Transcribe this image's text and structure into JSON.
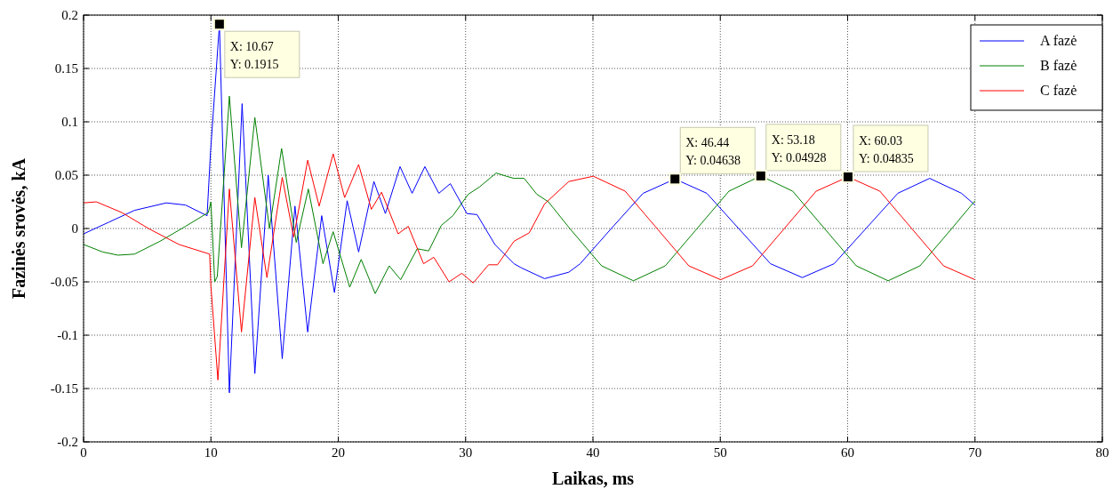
{
  "chart_data": {
    "type": "line",
    "xlabel": "Laikas, ms",
    "ylabel": "Fazinės srovės, kA",
    "xlim": [
      0,
      80
    ],
    "xticks": [
      0,
      10,
      20,
      30,
      40,
      50,
      60,
      70,
      80
    ],
    "ylim": [
      -0.2,
      0.2
    ],
    "yticks": [
      -0.2,
      -0.15,
      -0.1,
      -0.05,
      0,
      0.05,
      0.1,
      0.15,
      0.2
    ],
    "grid": true,
    "legend": "top right",
    "line_style": "solid",
    "marker": "none",
    "series": [
      {
        "name": "A fazė",
        "color": "#0000ff",
        "x": [
          0,
          2,
          4,
          6.5,
          8,
          9.7,
          9.96,
          10.67,
          11.45,
          12.45,
          13.45,
          14.5,
          15.6,
          16.6,
          17.6,
          18.7,
          19.7,
          20.7,
          21.6,
          22.8,
          23.7,
          24.85,
          25.8,
          26.8,
          27.9,
          28.8,
          30.1,
          30.9,
          32.3,
          33.8,
          34.4,
          36.2,
          38.1,
          39,
          41.44,
          43.94,
          46.44,
          48.94,
          51.44,
          53.94,
          56.44,
          58.94,
          61.44,
          63.94,
          66.44,
          68.94,
          70
        ],
        "values": [
          -0.005,
          0.006,
          0.017,
          0.024,
          0.022,
          0.012,
          0.07,
          0.1915,
          -0.154,
          0.117,
          -0.136,
          0.05,
          -0.122,
          0.021,
          -0.097,
          0.012,
          -0.06,
          0.026,
          -0.022,
          0.044,
          0.014,
          0.058,
          0.033,
          0.058,
          0.033,
          0.042,
          0.014,
          0.013,
          -0.015,
          -0.033,
          -0.037,
          -0.047,
          -0.041,
          -0.033,
          0,
          0.033,
          0.04638,
          0.033,
          0,
          -0.033,
          -0.046,
          -0.033,
          0,
          0.033,
          0.047,
          0.033,
          0.022
        ]
      },
      {
        "name": "B fazė",
        "color": "#008000",
        "x": [
          0,
          1.5,
          2.7,
          4,
          6,
          8,
          9.8,
          10,
          10.3,
          10.5,
          11.45,
          12.4,
          13.45,
          14.6,
          15.55,
          16.7,
          17.65,
          18.8,
          19.6,
          20.9,
          21.8,
          22.9,
          24,
          24.9,
          26.2,
          27.1,
          28.1,
          29,
          30.2,
          31.1,
          32.4,
          33.2,
          33.8,
          34.6,
          35.6,
          36.5,
          38.18,
          40.68,
          43.18,
          45.68,
          48.18,
          50.68,
          53.18,
          55.68,
          58.18,
          60.68,
          63.18,
          65.68,
          68.18,
          70
        ],
        "values": [
          -0.015,
          -0.022,
          -0.025,
          -0.024,
          -0.012,
          0.002,
          0.015,
          0.025,
          -0.05,
          -0.045,
          0.124,
          -0.018,
          0.104,
          0,
          0.075,
          -0.013,
          0.037,
          -0.033,
          -0.003,
          -0.055,
          -0.029,
          -0.061,
          -0.035,
          -0.048,
          -0.019,
          -0.021,
          0.003,
          0.012,
          0.032,
          0.039,
          0.052,
          0.049,
          0.047,
          0.047,
          0.032,
          0.025,
          0,
          -0.035,
          -0.049,
          -0.035,
          0,
          0.035,
          0.04928,
          0.035,
          0,
          -0.035,
          -0.049,
          -0.035,
          0,
          0.026
        ]
      },
      {
        "name": "C fazė",
        "color": "#ff0000",
        "x": [
          0,
          1,
          3,
          5.1,
          7.5,
          9.9,
          10,
          10.55,
          11.45,
          12.4,
          13.45,
          14.4,
          15.6,
          16.5,
          17.6,
          18.5,
          19.6,
          20.5,
          21.6,
          22.6,
          23.4,
          24.7,
          25.5,
          26.7,
          27.5,
          28.7,
          29.7,
          30.6,
          31.8,
          32.5,
          33.8,
          35,
          36.2,
          38.1,
          40.03,
          42.53,
          45.03,
          47.53,
          50.03,
          52.53,
          55.03,
          57.53,
          60.03,
          62.53,
          65.03,
          67.53,
          70
        ],
        "values": [
          0.024,
          0.025,
          0.015,
          0,
          -0.015,
          -0.024,
          -0.054,
          -0.142,
          0.037,
          -0.097,
          0.029,
          -0.046,
          0.048,
          -0.008,
          0.064,
          0.021,
          0.07,
          0.029,
          0.06,
          0.018,
          0.034,
          -0.005,
          0.002,
          -0.033,
          -0.027,
          -0.05,
          -0.042,
          -0.051,
          -0.034,
          -0.034,
          -0.012,
          -0.004,
          0.023,
          0.044,
          0.049,
          0.035,
          0,
          -0.035,
          -0.048,
          -0.035,
          0,
          0.035,
          0.04835,
          0.035,
          0,
          -0.035,
          -0.048
        ]
      }
    ],
    "annotations": [
      {
        "text": "X: 10.67\nY: 0.1915",
        "x": 10.67,
        "y": 0.1915
      },
      {
        "text": "X: 46.44\nY: 0.04638",
        "x": 46.44,
        "y": 0.04638
      },
      {
        "text": "X: 53.18\nY: 0.04928",
        "x": 53.18,
        "y": 0.04928
      },
      {
        "text": "X: 60.03\nY: 0.04835",
        "x": 60.03,
        "y": 0.04835
      }
    ]
  }
}
